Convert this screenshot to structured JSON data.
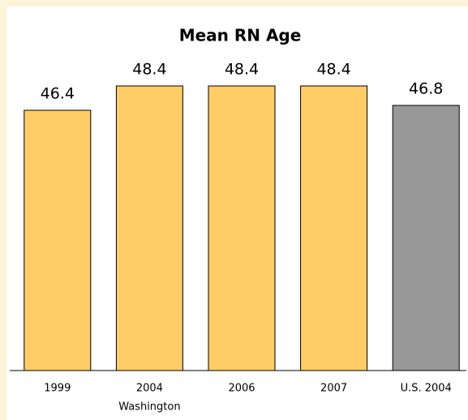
{
  "chart_data": {
    "type": "bar",
    "title": "Mean RN Age",
    "categories": [
      "1999",
      "2004",
      "2006",
      "2007",
      "U.S. 2004"
    ],
    "values": [
      46.4,
      48.4,
      48.4,
      48.4,
      46.8
    ],
    "colors": [
      "#ffcc66",
      "#ffcc66",
      "#ffcc66",
      "#ffcc66",
      "#999999"
    ],
    "group_label": "Washington",
    "ylim": [
      25,
      50
    ]
  }
}
